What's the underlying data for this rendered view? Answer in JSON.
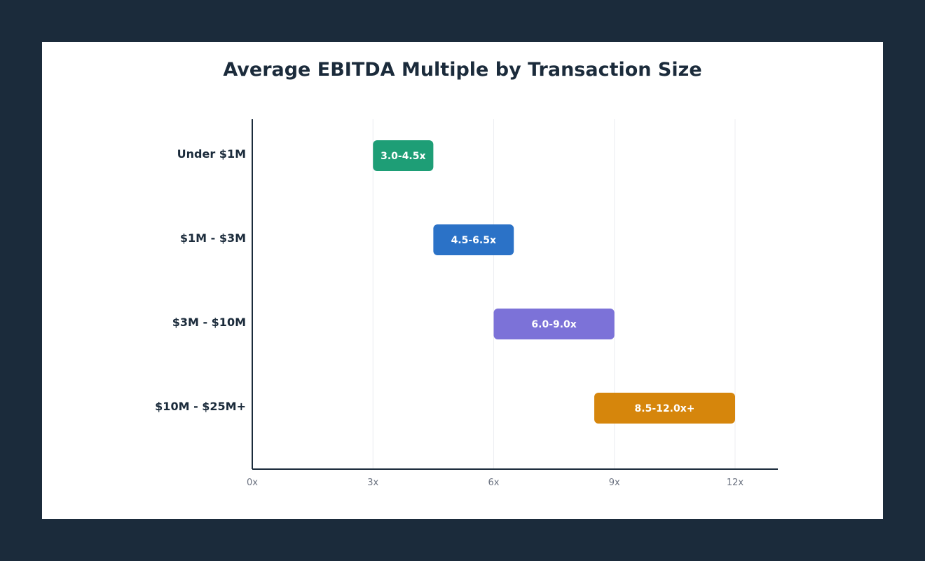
{
  "chart_data": {
    "type": "bar",
    "orientation": "horizontal-range",
    "title": "Average EBITDA Multiple by Transaction Size",
    "xlabel": "",
    "ylabel": "",
    "xlim": [
      0,
      13
    ],
    "x_ticks": [
      {
        "value": 0,
        "label": "0x"
      },
      {
        "value": 3,
        "label": "3x"
      },
      {
        "value": 6,
        "label": "6x"
      },
      {
        "value": 9,
        "label": "9x"
      },
      {
        "value": 12,
        "label": "12x"
      }
    ],
    "grid": true,
    "categories": [
      "Under $1M",
      "$1M - $3M",
      "$3M - $10M",
      "$10M - $25M+"
    ],
    "ranges": [
      {
        "category": "Under $1M",
        "low": 3.0,
        "high": 4.5,
        "label": "3.0-4.5x",
        "color": "#1e9e76"
      },
      {
        "category": "$1M - $3M",
        "low": 4.5,
        "high": 6.5,
        "label": "4.5-6.5x",
        "color": "#2b72c7"
      },
      {
        "category": "$3M - $10M",
        "low": 6.0,
        "high": 9.0,
        "label": "6.0-9.0x",
        "color": "#7c72d8"
      },
      {
        "category": "$10M - $25M+",
        "low": 8.5,
        "high": 12.0,
        "label": "8.5-12.0x+",
        "color": "#d6860c"
      }
    ]
  }
}
